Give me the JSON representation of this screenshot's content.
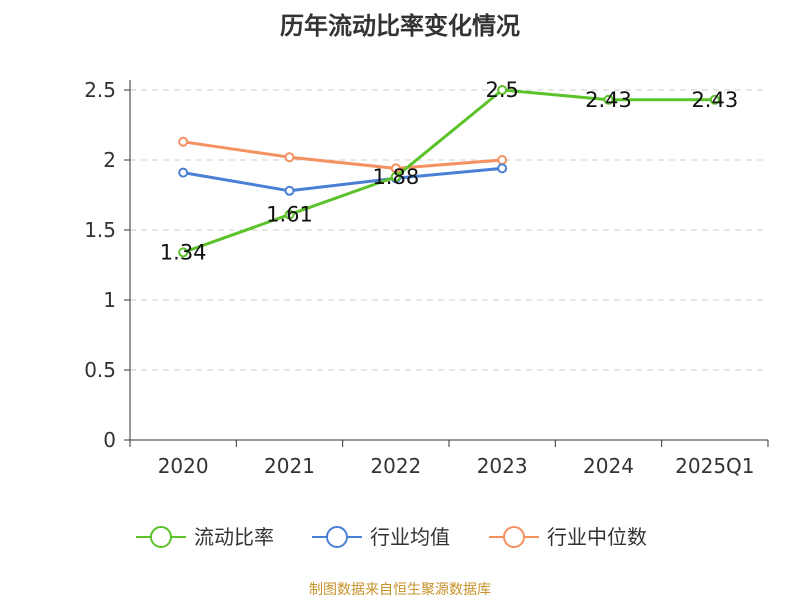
{
  "title": "历年流动比率变化情况",
  "source": "制图数据来自恒生聚源数据库",
  "chart_data": {
    "type": "line",
    "title": "历年流动比率变化情况",
    "categories": [
      "2020",
      "2021",
      "2022",
      "2023",
      "2024",
      "2025Q1"
    ],
    "ylim": [
      0,
      2.5
    ],
    "yticks": [
      0,
      0.5,
      1,
      1.5,
      2,
      2.5
    ],
    "ytick_labels": [
      "0",
      "0.5",
      "1",
      "1.5",
      "2",
      "2.5"
    ],
    "grid": true,
    "legend_position": "bottom",
    "series": [
      {
        "name": "流动比率",
        "color": "#5cc22a",
        "values": [
          1.34,
          1.61,
          1.88,
          2.5,
          2.43,
          2.43
        ],
        "labels": [
          "1.34",
          "1.61",
          "1.88",
          "2.5",
          "2.43",
          "2.43"
        ]
      },
      {
        "name": "行业均值",
        "color": "#4a7fd6",
        "values": [
          1.91,
          1.78,
          1.87,
          1.94,
          null,
          null
        ]
      },
      {
        "name": "行业中位数",
        "color": "#f59160",
        "values": [
          2.13,
          2.02,
          1.94,
          2.0,
          null,
          null
        ]
      }
    ]
  }
}
